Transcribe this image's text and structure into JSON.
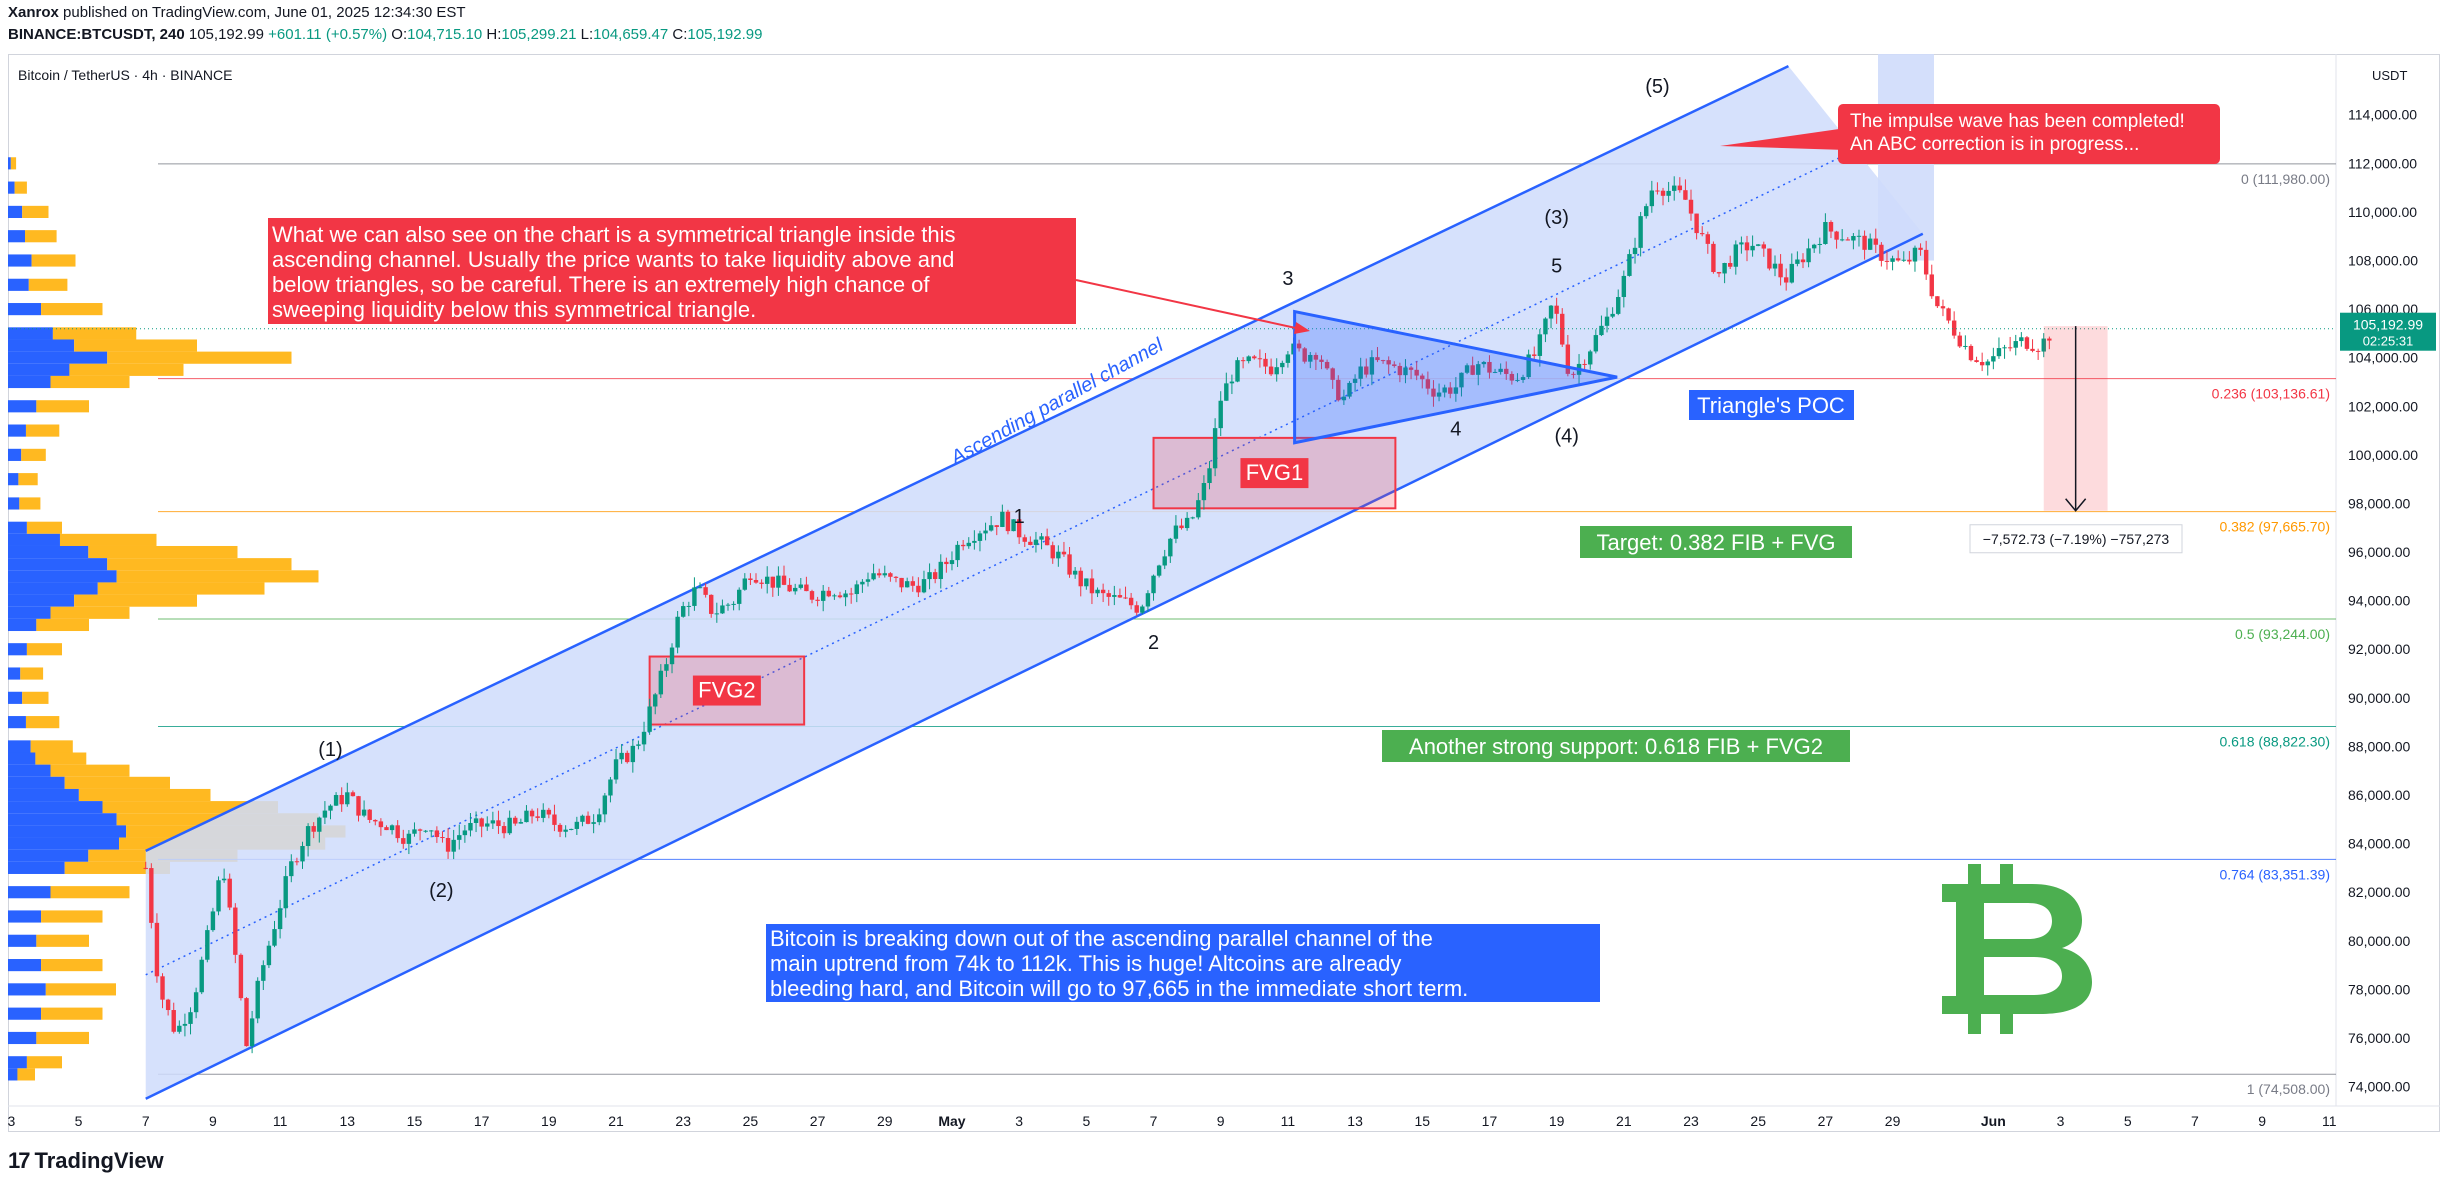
{
  "header": {
    "publisher": "Xanrox",
    "published_text": "published on TradingView.com, June 01, 2025 12:34:30 EST",
    "symbol": "BINANCE:BTCUSDT, 240",
    "last": "105,192.99",
    "change": "+601.11 (+0.57%)",
    "o_label": "O:",
    "o": "104,715.10",
    "h_label": "H:",
    "h": "105,299.21",
    "l_label": "L:",
    "l": "104,659.47",
    "c_label": "C:",
    "c": "105,192.99"
  },
  "chart_title": "Bitcoin / TetherUS · 4h · BINANCE",
  "currency": "USDT",
  "footer": {
    "brand": "TradingView",
    "logo_icon": "tradingview-logo-icon"
  },
  "colors": {
    "up": "#089981",
    "down": "#f23645",
    "channel": "#2962ff",
    "channel_fill": "#cfdcfb",
    "vp_blue": "#2962ff",
    "vp_orange": "#ffb921",
    "fib_0236": "#f23645",
    "fib_0382": "#ff9800",
    "fib_05": "#4caf50",
    "fib_0618": "#089981",
    "fib_0764": "#2962ff",
    "fib_1": "#787b86",
    "red_box": "#f23645",
    "green_box": "#4caf50",
    "blue_box": "#2962ff",
    "btc_logo": "#4caf50"
  },
  "annotations": {
    "red_text_box": "What we can also see on the chart is a symmetrical triangle inside this ascending channel. Usually the price wants to take liquidity above and below triangles, so be careful. There is an extremely high chance of sweeping liquidity below this symmetrical triangle.",
    "red_text_lines": [
      "What we can also see on the chart is a symmetrical triangle inside this",
      "ascending channel. Usually the price wants to take liquidity above and",
      "below triangles, so be careful. There is an extremely high chance of",
      "sweeping liquidity below this symmetrical triangle."
    ],
    "impulse_box_lines": [
      "The impulse wave has been completed!",
      "An ABC correction is in progress..."
    ],
    "blue_text_lines": [
      "Bitcoin is breaking down out of the ascending parallel channel of the",
      "main uptrend from 74k to 112k. This is huge! Altcoins are already",
      "bleeding hard, and Bitcoin will go to 97,665 in the immediate short term."
    ],
    "triangle_poc": "Triangle's POC",
    "target": "Target: 0.382 FIB + FVG",
    "support": "Another strong support: 0.618 FIB + FVG2",
    "channel_label": "Ascending parallel channel",
    "fvg1": "FVG1",
    "fvg2": "FVG2",
    "measure": "−7,572.73 (−7.19%) −757,273",
    "btc_logo": "bitcoin-logo-icon",
    "waves": [
      {
        "label": "(1)",
        "date": 12.5,
        "price": 87600
      },
      {
        "label": "(2)",
        "date": 15.8,
        "price": 81800
      },
      {
        "label": "(3)",
        "date": 49.0,
        "price": 109500
      },
      {
        "label": "(4)",
        "date": 49.3,
        "price": 100500
      },
      {
        "label": "(5)",
        "date": 52.0,
        "price": 114900
      },
      {
        "label": "1",
        "date": 33.0,
        "price": 97200
      },
      {
        "label": "2",
        "date": 37.0,
        "price": 92000
      },
      {
        "label": "3",
        "date": 41.0,
        "price": 107000
      },
      {
        "label": "4",
        "date": 46.0,
        "price": 100800
      },
      {
        "label": "5",
        "date": 49.0,
        "price": 107500
      }
    ]
  },
  "chart_data": {
    "type": "candlestick",
    "symbol": "BTCUSDT",
    "timeframe": "4h",
    "ylim": [
      73200,
      116500
    ],
    "price_ticks": [
      74000,
      76000,
      78000,
      80000,
      82000,
      84000,
      86000,
      88000,
      90000,
      92000,
      94000,
      96000,
      98000,
      100000,
      102000,
      104000,
      106000,
      108000,
      110000,
      112000,
      114000
    ],
    "price_tick_labels": [
      "74,000.00",
      "76,000.00",
      "78,000.00",
      "80,000.00",
      "82,000.00",
      "84,000.00",
      "86,000.00",
      "88,000.00",
      "90,000.00",
      "92,000.00",
      "94,000.00",
      "96,000.00",
      "98,000.00",
      "100,000.00",
      "102,000.00",
      "104,000.00",
      "106,000.00",
      "108,000.00",
      "110,000.00",
      "112,000.00",
      "114,000.00"
    ],
    "x_ticks": [
      {
        "date": 3,
        "label": "3"
      },
      {
        "date": 5,
        "label": "5"
      },
      {
        "date": 7,
        "label": "7"
      },
      {
        "date": 9,
        "label": "9"
      },
      {
        "date": 11,
        "label": "11"
      },
      {
        "date": 13,
        "label": "13"
      },
      {
        "date": 15,
        "label": "15"
      },
      {
        "date": 17,
        "label": "17"
      },
      {
        "date": 19,
        "label": "19"
      },
      {
        "date": 21,
        "label": "21"
      },
      {
        "date": 23,
        "label": "23"
      },
      {
        "date": 25,
        "label": "25"
      },
      {
        "date": 27,
        "label": "27"
      },
      {
        "date": 29,
        "label": "29"
      },
      {
        "date": 31,
        "label": "May"
      },
      {
        "date": 33,
        "label": "3"
      },
      {
        "date": 35,
        "label": "5"
      },
      {
        "date": 37,
        "label": "7"
      },
      {
        "date": 39,
        "label": "9"
      },
      {
        "date": 41,
        "label": "11"
      },
      {
        "date": 43,
        "label": "13"
      },
      {
        "date": 45,
        "label": "15"
      },
      {
        "date": 47,
        "label": "17"
      },
      {
        "date": 49,
        "label": "19"
      },
      {
        "date": 51,
        "label": "21"
      },
      {
        "date": 53,
        "label": "23"
      },
      {
        "date": 55,
        "label": "25"
      },
      {
        "date": 57,
        "label": "27"
      },
      {
        "date": 59,
        "label": "29"
      },
      {
        "date": 62,
        "label": "Jun"
      },
      {
        "date": 64,
        "label": "3"
      },
      {
        "date": 66,
        "label": "5"
      },
      {
        "date": 68,
        "label": "7"
      },
      {
        "date": 70,
        "label": "9"
      },
      {
        "date": 72,
        "label": "11"
      }
    ],
    "x_range": [
      2.9,
      72.2
    ],
    "price_path": [
      [
        7.0,
        83000
      ],
      [
        7.4,
        78000
      ],
      [
        7.9,
        76200
      ],
      [
        8.4,
        77500
      ],
      [
        8.9,
        80500
      ],
      [
        9.3,
        83200
      ],
      [
        9.7,
        79000
      ],
      [
        10.0,
        75700
      ],
      [
        10.4,
        78500
      ],
      [
        10.8,
        80500
      ],
      [
        11.3,
        83000
      ],
      [
        11.8,
        84500
      ],
      [
        12.4,
        85500
      ],
      [
        13.0,
        86000
      ],
      [
        13.6,
        85000
      ],
      [
        14.2,
        84800
      ],
      [
        14.8,
        84200
      ],
      [
        15.4,
        84900
      ],
      [
        15.9,
        83800
      ],
      [
        16.5,
        84600
      ],
      [
        17.2,
        84800
      ],
      [
        18.0,
        84700
      ],
      [
        18.6,
        85300
      ],
      [
        19.2,
        84800
      ],
      [
        19.8,
        84700
      ],
      [
        20.4,
        85200
      ],
      [
        21.0,
        87200
      ],
      [
        21.6,
        88000
      ],
      [
        22.1,
        89800
      ],
      [
        22.5,
        91500
      ],
      [
        22.9,
        93500
      ],
      [
        23.4,
        94500
      ],
      [
        23.9,
        93500
      ],
      [
        24.5,
        94000
      ],
      [
        25.0,
        95200
      ],
      [
        25.6,
        94800
      ],
      [
        26.2,
        94500
      ],
      [
        26.8,
        94200
      ],
      [
        27.4,
        94500
      ],
      [
        28.0,
        94300
      ],
      [
        28.6,
        95200
      ],
      [
        29.2,
        94800
      ],
      [
        29.8,
        94600
      ],
      [
        30.3,
        94800
      ],
      [
        30.8,
        95500
      ],
      [
        31.3,
        96500
      ],
      [
        31.9,
        97000
      ],
      [
        32.5,
        97400
      ],
      [
        33.0,
        96800
      ],
      [
        33.6,
        96400
      ],
      [
        34.2,
        95800
      ],
      [
        34.8,
        94800
      ],
      [
        35.4,
        94200
      ],
      [
        36.0,
        94000
      ],
      [
        36.6,
        93700
      ],
      [
        37.1,
        95500
      ],
      [
        37.6,
        96800
      ],
      [
        38.1,
        97200
      ],
      [
        38.6,
        99000
      ],
      [
        39.0,
        102300
      ],
      [
        39.4,
        103500
      ],
      [
        39.9,
        103800
      ],
      [
        40.5,
        103600
      ],
      [
        41.0,
        104400
      ],
      [
        41.5,
        104100
      ],
      [
        41.9,
        104300
      ],
      [
        42.3,
        102800
      ],
      [
        42.7,
        102300
      ],
      [
        43.1,
        103400
      ],
      [
        43.6,
        103800
      ],
      [
        44.2,
        103600
      ],
      [
        44.8,
        103300
      ],
      [
        45.4,
        102600
      ],
      [
        46.0,
        102800
      ],
      [
        46.6,
        103800
      ],
      [
        47.2,
        103400
      ],
      [
        47.8,
        103200
      ],
      [
        48.4,
        104200
      ],
      [
        48.9,
        106300
      ],
      [
        49.4,
        103200
      ],
      [
        49.9,
        104200
      ],
      [
        50.5,
        105600
      ],
      [
        51.0,
        107200
      ],
      [
        51.5,
        109600
      ],
      [
        51.9,
        111200
      ],
      [
        52.3,
        110900
      ],
      [
        52.8,
        110600
      ],
      [
        53.3,
        109000
      ],
      [
        53.8,
        107400
      ],
      [
        54.3,
        108300
      ],
      [
        54.8,
        108700
      ],
      [
        55.3,
        108000
      ],
      [
        55.8,
        107200
      ],
      [
        56.4,
        108300
      ],
      [
        57.0,
        109300
      ],
      [
        57.6,
        109000
      ],
      [
        58.2,
        108700
      ],
      [
        58.7,
        108200
      ],
      [
        59.3,
        107800
      ],
      [
        59.8,
        108400
      ],
      [
        60.3,
        106200
      ],
      [
        60.8,
        105200
      ],
      [
        61.3,
        104200
      ],
      [
        61.8,
        103800
      ],
      [
        62.3,
        104300
      ],
      [
        62.9,
        104700
      ],
      [
        63.4,
        104500
      ],
      [
        63.8,
        105193
      ]
    ],
    "last_price": "105,192.99",
    "countdown": "02:25:31",
    "fib_levels": [
      {
        "ratio": "0",
        "price": 111980,
        "label": "0 (111,980.00)"
      },
      {
        "ratio": "0.236",
        "price": 103136.61,
        "label": "0.236 (103,136.61)"
      },
      {
        "ratio": "0.382",
        "price": 97665.7,
        "label": "0.382 (97,665.70)"
      },
      {
        "ratio": "0.5",
        "price": 93244.0,
        "label": "0.5 (93,244.00)"
      },
      {
        "ratio": "0.618",
        "price": 88822.3,
        "label": "0.618 (88,822.30)"
      },
      {
        "ratio": "0.764",
        "price": 83351.39,
        "label": "0.764 (83,351.39)"
      },
      {
        "ratio": "1",
        "price": 74508.0,
        "label": "1 (74,508.00)"
      }
    ],
    "channel": {
      "lower": [
        [
          7.0,
          73500
        ],
        [
          59.9,
          109100
        ]
      ],
      "upper": [
        [
          7.0,
          83700
        ],
        [
          55.9,
          116000
        ]
      ]
    },
    "triangle": [
      [
        41.2,
        105900
      ],
      [
        41.2,
        100500
      ],
      [
        50.8,
        103200
      ]
    ],
    "fvg1": {
      "x": [
        37.0,
        44.2
      ],
      "y": [
        97800,
        100700
      ]
    },
    "fvg2": {
      "x": [
        22.0,
        26.6
      ],
      "y": [
        88900,
        91700
      ]
    },
    "measure": {
      "x": [
        63.5,
        65.4
      ],
      "y_from": 105300,
      "y_to": 97700
    },
    "volume_profile": [
      [
        112000,
        6
      ],
      [
        111000,
        14
      ],
      [
        110000,
        30
      ],
      [
        109000,
        36
      ],
      [
        108000,
        50
      ],
      [
        107000,
        44
      ],
      [
        106000,
        70
      ],
      [
        105000,
        95
      ],
      [
        104500,
        140
      ],
      [
        104000,
        210
      ],
      [
        103500,
        130
      ],
      [
        103000,
        90
      ],
      [
        102000,
        60
      ],
      [
        101000,
        38
      ],
      [
        100000,
        28
      ],
      [
        99000,
        22
      ],
      [
        98000,
        24
      ],
      [
        97000,
        40
      ],
      [
        96500,
        110
      ],
      [
        96000,
        170
      ],
      [
        95500,
        210
      ],
      [
        95000,
        230
      ],
      [
        94500,
        190
      ],
      [
        94000,
        140
      ],
      [
        93500,
        90
      ],
      [
        93000,
        60
      ],
      [
        92000,
        40
      ],
      [
        91000,
        26
      ],
      [
        90000,
        30
      ],
      [
        89000,
        38
      ],
      [
        88000,
        48
      ],
      [
        87500,
        58
      ],
      [
        87000,
        90
      ],
      [
        86500,
        120
      ],
      [
        86000,
        150
      ],
      [
        85500,
        200
      ],
      [
        85000,
        230
      ],
      [
        84500,
        250
      ],
      [
        84000,
        235
      ],
      [
        83500,
        170
      ],
      [
        83000,
        120
      ],
      [
        82000,
        90
      ],
      [
        81000,
        70
      ],
      [
        80000,
        60
      ],
      [
        79000,
        70
      ],
      [
        78000,
        80
      ],
      [
        77000,
        70
      ],
      [
        76000,
        60
      ],
      [
        75000,
        40
      ],
      [
        74500,
        20
      ]
    ]
  }
}
